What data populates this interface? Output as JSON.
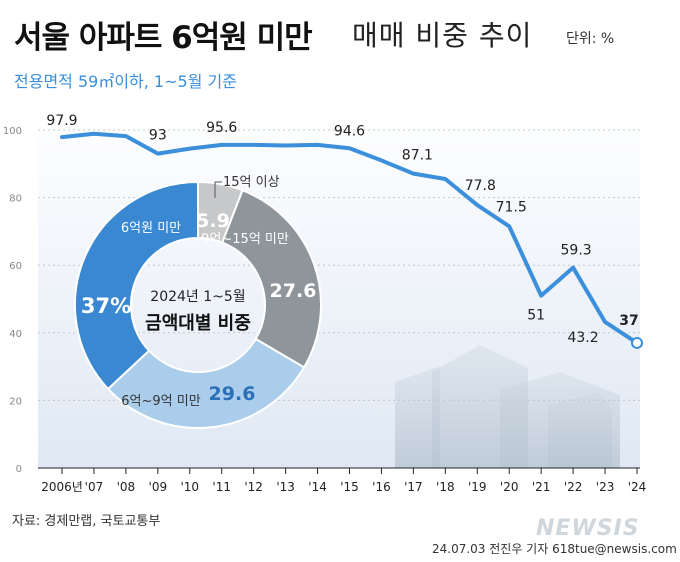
{
  "header": {
    "title_bold": "서울 아파트 6억원 미만",
    "title_light": "매매 비중 추이",
    "unit": "단위: %",
    "subtitle": "전용면적 59㎡이하, 1~5월 기준"
  },
  "footer": {
    "source": "자료: 경제만랩, 국토교통부",
    "credit": "24.07.03 전진우 기자 618tue@newsis.com",
    "logo": "NEWSIS"
  },
  "chart_data": [
    {
      "type": "line",
      "x": [
        "2006년",
        "'07",
        "'08",
        "'09",
        "'10",
        "'11",
        "'12",
        "'13",
        "'14",
        "'15",
        "'16",
        "'17",
        "'18",
        "'19",
        "'20",
        "'21",
        "'22",
        "'23",
        "'24"
      ],
      "values": [
        97.9,
        98.9,
        98.2,
        93,
        94.5,
        95.6,
        95.6,
        95.4,
        95.6,
        94.6,
        91,
        87.1,
        85.5,
        77.8,
        71.5,
        51,
        59.3,
        43.2,
        37
      ],
      "labeled_points": [
        {
          "i": 0,
          "text": "97.9"
        },
        {
          "i": 3,
          "text": "93"
        },
        {
          "i": 5,
          "text": "95.6"
        },
        {
          "i": 9,
          "text": "94.6"
        },
        {
          "i": 11,
          "text": "87.1"
        },
        {
          "i": 13,
          "text": "77.8"
        },
        {
          "i": 14,
          "text": "71.5"
        },
        {
          "i": 15,
          "text": "51"
        },
        {
          "i": 16,
          "text": "59.3"
        },
        {
          "i": 17,
          "text": "43.2"
        },
        {
          "i": 18,
          "text": "37"
        }
      ],
      "yticks": [
        0,
        20,
        40,
        60,
        80,
        100
      ],
      "ylim": [
        0,
        100
      ],
      "line_color": "#3b8fdb"
    },
    {
      "type": "pie",
      "title": "2024년 1~5월",
      "subtitle": "금액대별 비중",
      "slices": [
        {
          "label": "6억원 미만",
          "value": 37,
          "text": "37%",
          "color": "#3a88d2"
        },
        {
          "label": "15억 이상",
          "value": 5.9,
          "text": "5.9",
          "color": "#c6c8ca"
        },
        {
          "label": "9억~15억 미만",
          "value": 27.6,
          "text": "27.6",
          "color": "#8f969b"
        },
        {
          "label": "6억~9억 미만",
          "value": 29.6,
          "text": "29.6",
          "color": "#a9cdea"
        }
      ]
    }
  ]
}
